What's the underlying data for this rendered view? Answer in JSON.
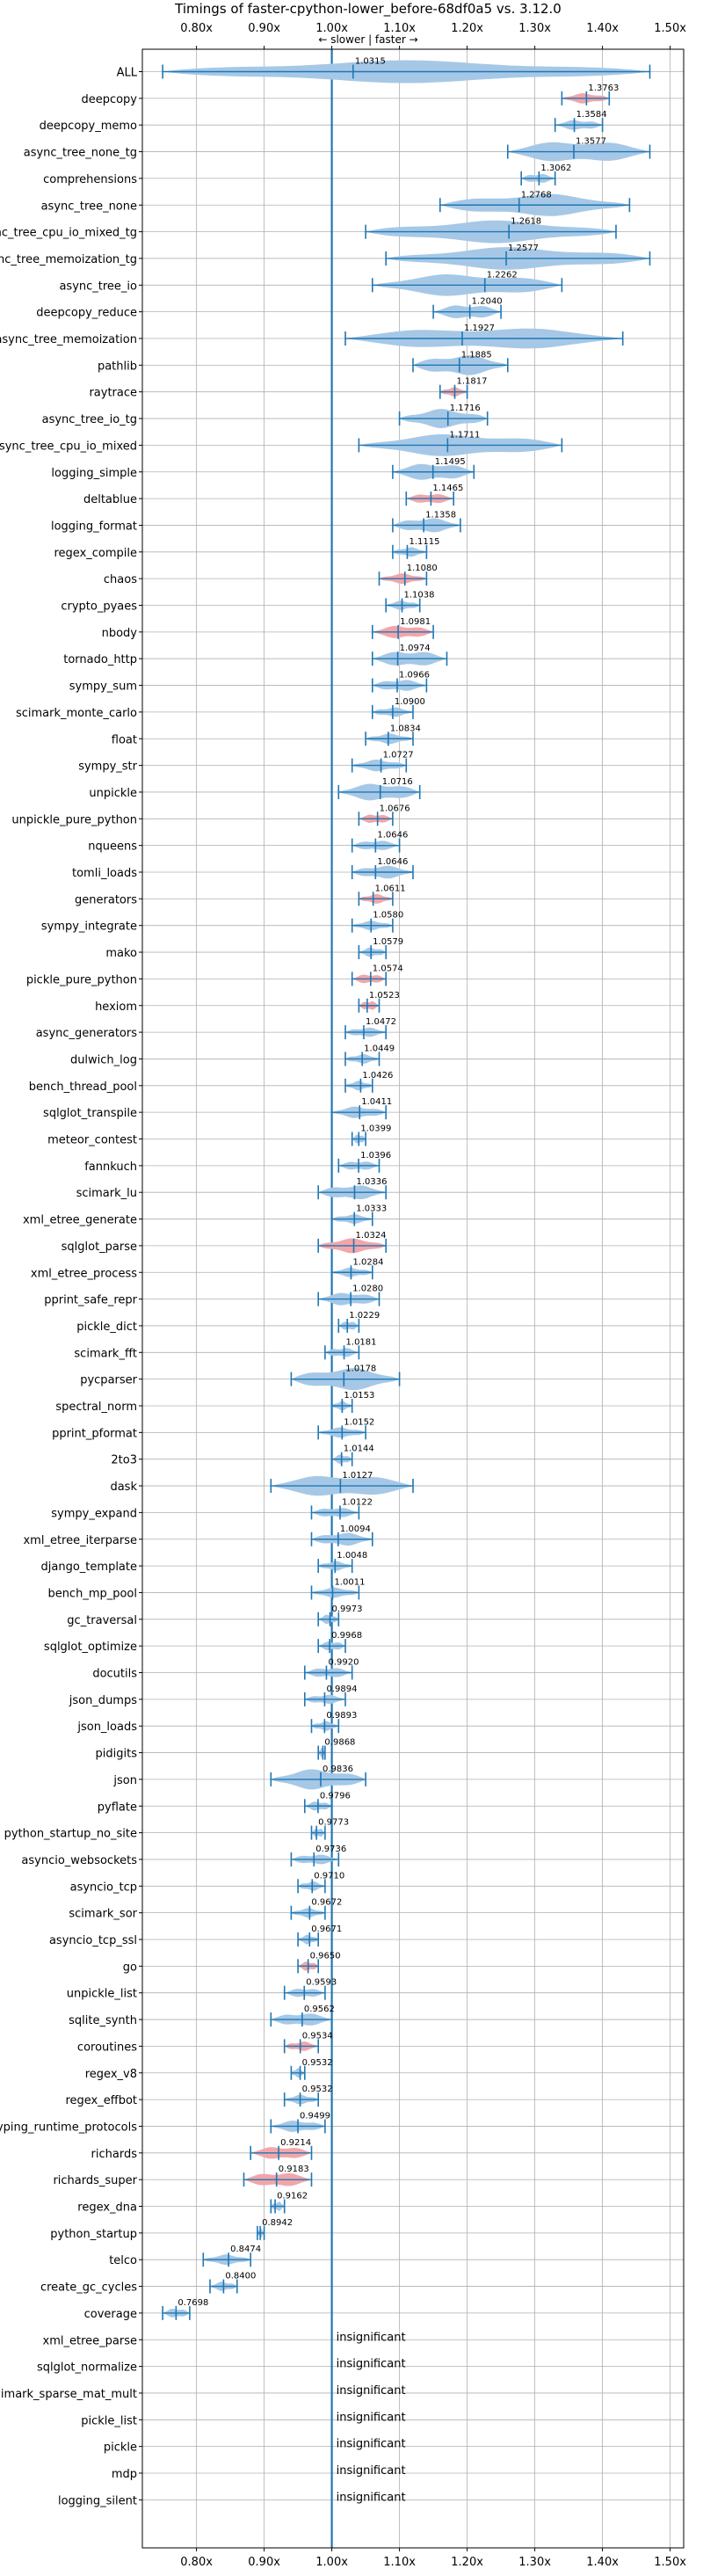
{
  "chart_data": {
    "type": "violin",
    "title": "Timings of faster-cpython-lower_before-68df0a5 vs. 3.12.0",
    "subtitle": "← slower | faster →",
    "xlim": [
      0.72,
      1.52
    ],
    "grid": true,
    "x_tick_labels": [
      "0.80x",
      "0.90x",
      "1.00x",
      "1.10x",
      "1.20x",
      "1.30x",
      "1.40x",
      "1.50x"
    ],
    "reference_value": 1.0,
    "insignificant_label": "insignificant",
    "colors": {
      "violin_default": "#a6c8e6",
      "violin_highlight": "#f2a6aa",
      "error_bar": "#1f77b4",
      "reference_line": "#1f77b4",
      "grid": "#b0b0b0"
    },
    "benchmarks": [
      {
        "name": "ALL",
        "mean": 1.0315,
        "lo": 0.75,
        "hi": 1.47,
        "label": "1.0315",
        "highlight": false
      },
      {
        "name": "deepcopy",
        "mean": 1.3763,
        "lo": 1.34,
        "hi": 1.41,
        "label": "1.3763",
        "highlight": true
      },
      {
        "name": "deepcopy_memo",
        "mean": 1.3584,
        "lo": 1.33,
        "hi": 1.4,
        "label": "1.3584",
        "highlight": false
      },
      {
        "name": "async_tree_none_tg",
        "mean": 1.3577,
        "lo": 1.26,
        "hi": 1.47,
        "label": "1.3577",
        "highlight": false
      },
      {
        "name": "comprehensions",
        "mean": 1.3062,
        "lo": 1.28,
        "hi": 1.33,
        "label": "1.3062",
        "highlight": false
      },
      {
        "name": "async_tree_none",
        "mean": 1.2768,
        "lo": 1.16,
        "hi": 1.44,
        "label": "1.2768",
        "highlight": false
      },
      {
        "name": "async_tree_cpu_io_mixed_tg",
        "mean": 1.2618,
        "lo": 1.05,
        "hi": 1.42,
        "label": "1.2618",
        "highlight": false
      },
      {
        "name": "async_tree_memoization_tg",
        "mean": 1.2577,
        "lo": 1.08,
        "hi": 1.47,
        "label": "1.2577",
        "highlight": false
      },
      {
        "name": "async_tree_io",
        "mean": 1.2262,
        "lo": 1.06,
        "hi": 1.34,
        "label": "1.2262",
        "highlight": false
      },
      {
        "name": "deepcopy_reduce",
        "mean": 1.204,
        "lo": 1.15,
        "hi": 1.25,
        "label": "1.2040",
        "highlight": false
      },
      {
        "name": "async_tree_memoization",
        "mean": 1.1927,
        "lo": 1.02,
        "hi": 1.43,
        "label": "1.1927",
        "highlight": false
      },
      {
        "name": "pathlib",
        "mean": 1.1885,
        "lo": 1.12,
        "hi": 1.26,
        "label": "1.1885",
        "highlight": false
      },
      {
        "name": "raytrace",
        "mean": 1.1817,
        "lo": 1.16,
        "hi": 1.2,
        "label": "1.1817",
        "highlight": true
      },
      {
        "name": "async_tree_io_tg",
        "mean": 1.1716,
        "lo": 1.1,
        "hi": 1.23,
        "label": "1.1716",
        "highlight": false
      },
      {
        "name": "async_tree_cpu_io_mixed",
        "mean": 1.1711,
        "lo": 1.04,
        "hi": 1.34,
        "label": "1.1711",
        "highlight": false
      },
      {
        "name": "logging_simple",
        "mean": 1.1495,
        "lo": 1.09,
        "hi": 1.21,
        "label": "1.1495",
        "highlight": false
      },
      {
        "name": "deltablue",
        "mean": 1.1465,
        "lo": 1.11,
        "hi": 1.18,
        "label": "1.1465",
        "highlight": true
      },
      {
        "name": "logging_format",
        "mean": 1.1358,
        "lo": 1.09,
        "hi": 1.19,
        "label": "1.1358",
        "highlight": false
      },
      {
        "name": "regex_compile",
        "mean": 1.1115,
        "lo": 1.09,
        "hi": 1.14,
        "label": "1.1115",
        "highlight": false
      },
      {
        "name": "chaos",
        "mean": 1.108,
        "lo": 1.07,
        "hi": 1.14,
        "label": "1.1080",
        "highlight": true
      },
      {
        "name": "crypto_pyaes",
        "mean": 1.1038,
        "lo": 1.08,
        "hi": 1.13,
        "label": "1.1038",
        "highlight": false
      },
      {
        "name": "nbody",
        "mean": 1.0981,
        "lo": 1.06,
        "hi": 1.15,
        "label": "1.0981",
        "highlight": true
      },
      {
        "name": "tornado_http",
        "mean": 1.0974,
        "lo": 1.06,
        "hi": 1.17,
        "label": "1.0974",
        "highlight": false
      },
      {
        "name": "sympy_sum",
        "mean": 1.0966,
        "lo": 1.06,
        "hi": 1.14,
        "label": "1.0966",
        "highlight": false
      },
      {
        "name": "scimark_monte_carlo",
        "mean": 1.09,
        "lo": 1.06,
        "hi": 1.12,
        "label": "1.0900",
        "highlight": false
      },
      {
        "name": "float",
        "mean": 1.0834,
        "lo": 1.05,
        "hi": 1.12,
        "label": "1.0834",
        "highlight": false
      },
      {
        "name": "sympy_str",
        "mean": 1.0727,
        "lo": 1.03,
        "hi": 1.11,
        "label": "1.0727",
        "highlight": false
      },
      {
        "name": "unpickle",
        "mean": 1.0716,
        "lo": 1.01,
        "hi": 1.13,
        "label": "1.0716",
        "highlight": false
      },
      {
        "name": "unpickle_pure_python",
        "mean": 1.0676,
        "lo": 1.04,
        "hi": 1.09,
        "label": "1.0676",
        "highlight": true
      },
      {
        "name": "nqueens",
        "mean": 1.0646,
        "lo": 1.03,
        "hi": 1.1,
        "label": "1.0646",
        "highlight": false
      },
      {
        "name": "tomli_loads",
        "mean": 1.0646,
        "lo": 1.03,
        "hi": 1.12,
        "label": "1.0646",
        "highlight": false
      },
      {
        "name": "generators",
        "mean": 1.0611,
        "lo": 1.04,
        "hi": 1.09,
        "label": "1.0611",
        "highlight": true
      },
      {
        "name": "sympy_integrate",
        "mean": 1.058,
        "lo": 1.03,
        "hi": 1.09,
        "label": "1.0580",
        "highlight": false
      },
      {
        "name": "mako",
        "mean": 1.0579,
        "lo": 1.04,
        "hi": 1.08,
        "label": "1.0579",
        "highlight": false
      },
      {
        "name": "pickle_pure_python",
        "mean": 1.0574,
        "lo": 1.03,
        "hi": 1.08,
        "label": "1.0574",
        "highlight": true
      },
      {
        "name": "hexiom",
        "mean": 1.0523,
        "lo": 1.04,
        "hi": 1.07,
        "label": "1.0523",
        "highlight": true
      },
      {
        "name": "async_generators",
        "mean": 1.0472,
        "lo": 1.02,
        "hi": 1.08,
        "label": "1.0472",
        "highlight": false
      },
      {
        "name": "dulwich_log",
        "mean": 1.0449,
        "lo": 1.02,
        "hi": 1.07,
        "label": "1.0449",
        "highlight": false
      },
      {
        "name": "bench_thread_pool",
        "mean": 1.0426,
        "lo": 1.02,
        "hi": 1.06,
        "label": "1.0426",
        "highlight": false
      },
      {
        "name": "sqlglot_transpile",
        "mean": 1.0411,
        "lo": 1.0,
        "hi": 1.08,
        "label": "1.0411",
        "highlight": false
      },
      {
        "name": "meteor_contest",
        "mean": 1.0399,
        "lo": 1.03,
        "hi": 1.05,
        "label": "1.0399",
        "highlight": false
      },
      {
        "name": "fannkuch",
        "mean": 1.0396,
        "lo": 1.01,
        "hi": 1.07,
        "label": "1.0396",
        "highlight": false
      },
      {
        "name": "scimark_lu",
        "mean": 1.0336,
        "lo": 0.98,
        "hi": 1.08,
        "label": "1.0336",
        "highlight": false
      },
      {
        "name": "xml_etree_generate",
        "mean": 1.0333,
        "lo": 1.0,
        "hi": 1.06,
        "label": "1.0333",
        "highlight": false
      },
      {
        "name": "sqlglot_parse",
        "mean": 1.0324,
        "lo": 0.98,
        "hi": 1.08,
        "label": "1.0324",
        "highlight": true
      },
      {
        "name": "xml_etree_process",
        "mean": 1.0284,
        "lo": 1.0,
        "hi": 1.06,
        "label": "1.0284",
        "highlight": false
      },
      {
        "name": "pprint_safe_repr",
        "mean": 1.028,
        "lo": 0.98,
        "hi": 1.07,
        "label": "1.0280",
        "highlight": false
      },
      {
        "name": "pickle_dict",
        "mean": 1.0229,
        "lo": 1.01,
        "hi": 1.04,
        "label": "1.0229",
        "highlight": false
      },
      {
        "name": "scimark_fft",
        "mean": 1.0181,
        "lo": 0.99,
        "hi": 1.04,
        "label": "1.0181",
        "highlight": false
      },
      {
        "name": "pycparser",
        "mean": 1.0178,
        "lo": 0.94,
        "hi": 1.1,
        "label": "1.0178",
        "highlight": false
      },
      {
        "name": "spectral_norm",
        "mean": 1.0153,
        "lo": 1.0,
        "hi": 1.03,
        "label": "1.0153",
        "highlight": false
      },
      {
        "name": "pprint_pformat",
        "mean": 1.0152,
        "lo": 0.98,
        "hi": 1.05,
        "label": "1.0152",
        "highlight": false
      },
      {
        "name": "2to3",
        "mean": 1.0144,
        "lo": 1.0,
        "hi": 1.03,
        "label": "1.0144",
        "highlight": false
      },
      {
        "name": "dask",
        "mean": 1.0127,
        "lo": 0.91,
        "hi": 1.12,
        "label": "1.0127",
        "highlight": false
      },
      {
        "name": "sympy_expand",
        "mean": 1.0122,
        "lo": 0.97,
        "hi": 1.04,
        "label": "1.0122",
        "highlight": false
      },
      {
        "name": "xml_etree_iterparse",
        "mean": 1.0094,
        "lo": 0.97,
        "hi": 1.06,
        "label": "1.0094",
        "highlight": false
      },
      {
        "name": "django_template",
        "mean": 1.0048,
        "lo": 0.98,
        "hi": 1.03,
        "label": "1.0048",
        "highlight": false
      },
      {
        "name": "bench_mp_pool",
        "mean": 1.0011,
        "lo": 0.97,
        "hi": 1.04,
        "label": "1.0011",
        "highlight": false
      },
      {
        "name": "gc_traversal",
        "mean": 0.9973,
        "lo": 0.98,
        "hi": 1.01,
        "label": "0.9973",
        "highlight": false
      },
      {
        "name": "sqlglot_optimize",
        "mean": 0.9968,
        "lo": 0.98,
        "hi": 1.02,
        "label": "0.9968",
        "highlight": false
      },
      {
        "name": "docutils",
        "mean": 0.992,
        "lo": 0.96,
        "hi": 1.03,
        "label": "0.9920",
        "highlight": false
      },
      {
        "name": "json_dumps",
        "mean": 0.9894,
        "lo": 0.96,
        "hi": 1.02,
        "label": "0.9894",
        "highlight": false
      },
      {
        "name": "json_loads",
        "mean": 0.9893,
        "lo": 0.97,
        "hi": 1.01,
        "label": "0.9893",
        "highlight": false
      },
      {
        "name": "pidigits",
        "mean": 0.9868,
        "lo": 0.98,
        "hi": 0.99,
        "label": "0.9868",
        "highlight": false
      },
      {
        "name": "json",
        "mean": 0.9836,
        "lo": 0.91,
        "hi": 1.05,
        "label": "0.9836",
        "highlight": false
      },
      {
        "name": "pyflate",
        "mean": 0.9796,
        "lo": 0.96,
        "hi": 1.0,
        "label": "0.9796",
        "highlight": false
      },
      {
        "name": "python_startup_no_site",
        "mean": 0.9773,
        "lo": 0.97,
        "hi": 0.99,
        "label": "0.9773",
        "highlight": false
      },
      {
        "name": "asyncio_websockets",
        "mean": 0.9736,
        "lo": 0.94,
        "hi": 1.01,
        "label": "0.9736",
        "highlight": false
      },
      {
        "name": "asyncio_tcp",
        "mean": 0.971,
        "lo": 0.95,
        "hi": 0.99,
        "label": "0.9710",
        "highlight": false
      },
      {
        "name": "scimark_sor",
        "mean": 0.9672,
        "lo": 0.94,
        "hi": 0.99,
        "label": "0.9672",
        "highlight": false
      },
      {
        "name": "asyncio_tcp_ssl",
        "mean": 0.9671,
        "lo": 0.95,
        "hi": 0.98,
        "label": "0.9671",
        "highlight": false
      },
      {
        "name": "go",
        "mean": 0.965,
        "lo": 0.95,
        "hi": 0.98,
        "label": "0.9650",
        "highlight": true
      },
      {
        "name": "unpickle_list",
        "mean": 0.9593,
        "lo": 0.93,
        "hi": 0.99,
        "label": "0.9593",
        "highlight": false
      },
      {
        "name": "sqlite_synth",
        "mean": 0.9562,
        "lo": 0.91,
        "hi": 1.0,
        "label": "0.9562",
        "highlight": false
      },
      {
        "name": "coroutines",
        "mean": 0.9534,
        "lo": 0.93,
        "hi": 0.98,
        "label": "0.9534",
        "highlight": true
      },
      {
        "name": "regex_v8",
        "mean": 0.9532,
        "lo": 0.94,
        "hi": 0.96,
        "label": "0.9532",
        "highlight": false
      },
      {
        "name": "regex_effbot",
        "mean": 0.9532,
        "lo": 0.93,
        "hi": 0.98,
        "label": "0.9532",
        "highlight": false
      },
      {
        "name": "typing_runtime_protocols",
        "mean": 0.9499,
        "lo": 0.91,
        "hi": 0.99,
        "label": "0.9499",
        "highlight": false
      },
      {
        "name": "richards",
        "mean": 0.9214,
        "lo": 0.88,
        "hi": 0.97,
        "label": "0.9214",
        "highlight": true
      },
      {
        "name": "richards_super",
        "mean": 0.9183,
        "lo": 0.87,
        "hi": 0.97,
        "label": "0.9183",
        "highlight": true
      },
      {
        "name": "regex_dna",
        "mean": 0.9162,
        "lo": 0.91,
        "hi": 0.93,
        "label": "0.9162",
        "highlight": false
      },
      {
        "name": "python_startup",
        "mean": 0.8942,
        "lo": 0.89,
        "hi": 0.9,
        "label": "0.8942",
        "highlight": false
      },
      {
        "name": "telco",
        "mean": 0.8474,
        "lo": 0.81,
        "hi": 0.88,
        "label": "0.8474",
        "highlight": false
      },
      {
        "name": "create_gc_cycles",
        "mean": 0.84,
        "lo": 0.82,
        "hi": 0.86,
        "label": "0.8400",
        "highlight": false
      },
      {
        "name": "coverage",
        "mean": 0.7698,
        "lo": 0.75,
        "hi": 0.79,
        "label": "0.7698",
        "highlight": false
      },
      {
        "name": "xml_etree_parse",
        "insignificant": true
      },
      {
        "name": "sqlglot_normalize",
        "insignificant": true
      },
      {
        "name": "scimark_sparse_mat_mult",
        "insignificant": true
      },
      {
        "name": "pickle_list",
        "insignificant": true
      },
      {
        "name": "pickle",
        "insignificant": true
      },
      {
        "name": "mdp",
        "insignificant": true
      },
      {
        "name": "logging_silent",
        "insignificant": true
      }
    ]
  }
}
